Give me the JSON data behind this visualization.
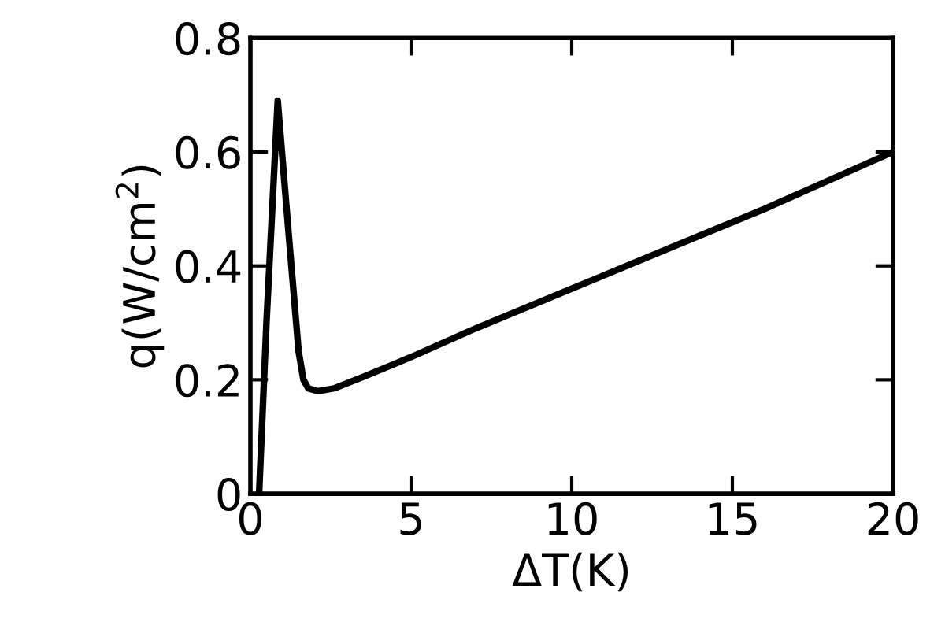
{
  "chart_data": {
    "type": "line",
    "xlabel": "ΔT(K)",
    "ylabel": "q(W/cm$^{2}$)",
    "x": [
      0.27,
      0.5,
      0.85,
      1.2,
      1.5,
      1.65,
      1.8,
      2.1,
      2.6,
      3.5,
      5,
      7,
      10,
      13,
      16,
      20
    ],
    "values": [
      0,
      0.3,
      0.69,
      0.45,
      0.25,
      0.2,
      0.185,
      0.18,
      0.185,
      0.205,
      0.24,
      0.29,
      0.36,
      0.43,
      0.5,
      0.6
    ],
    "color": "#000000",
    "xlim": [
      0,
      20
    ],
    "ylim": [
      0,
      0.8
    ],
    "xticks": [
      0,
      5,
      10,
      15,
      20
    ],
    "yticks": [
      0,
      0.2,
      0.4,
      0.6,
      0.8
    ],
    "grid": false,
    "marker": "none",
    "line_style": "solid"
  }
}
